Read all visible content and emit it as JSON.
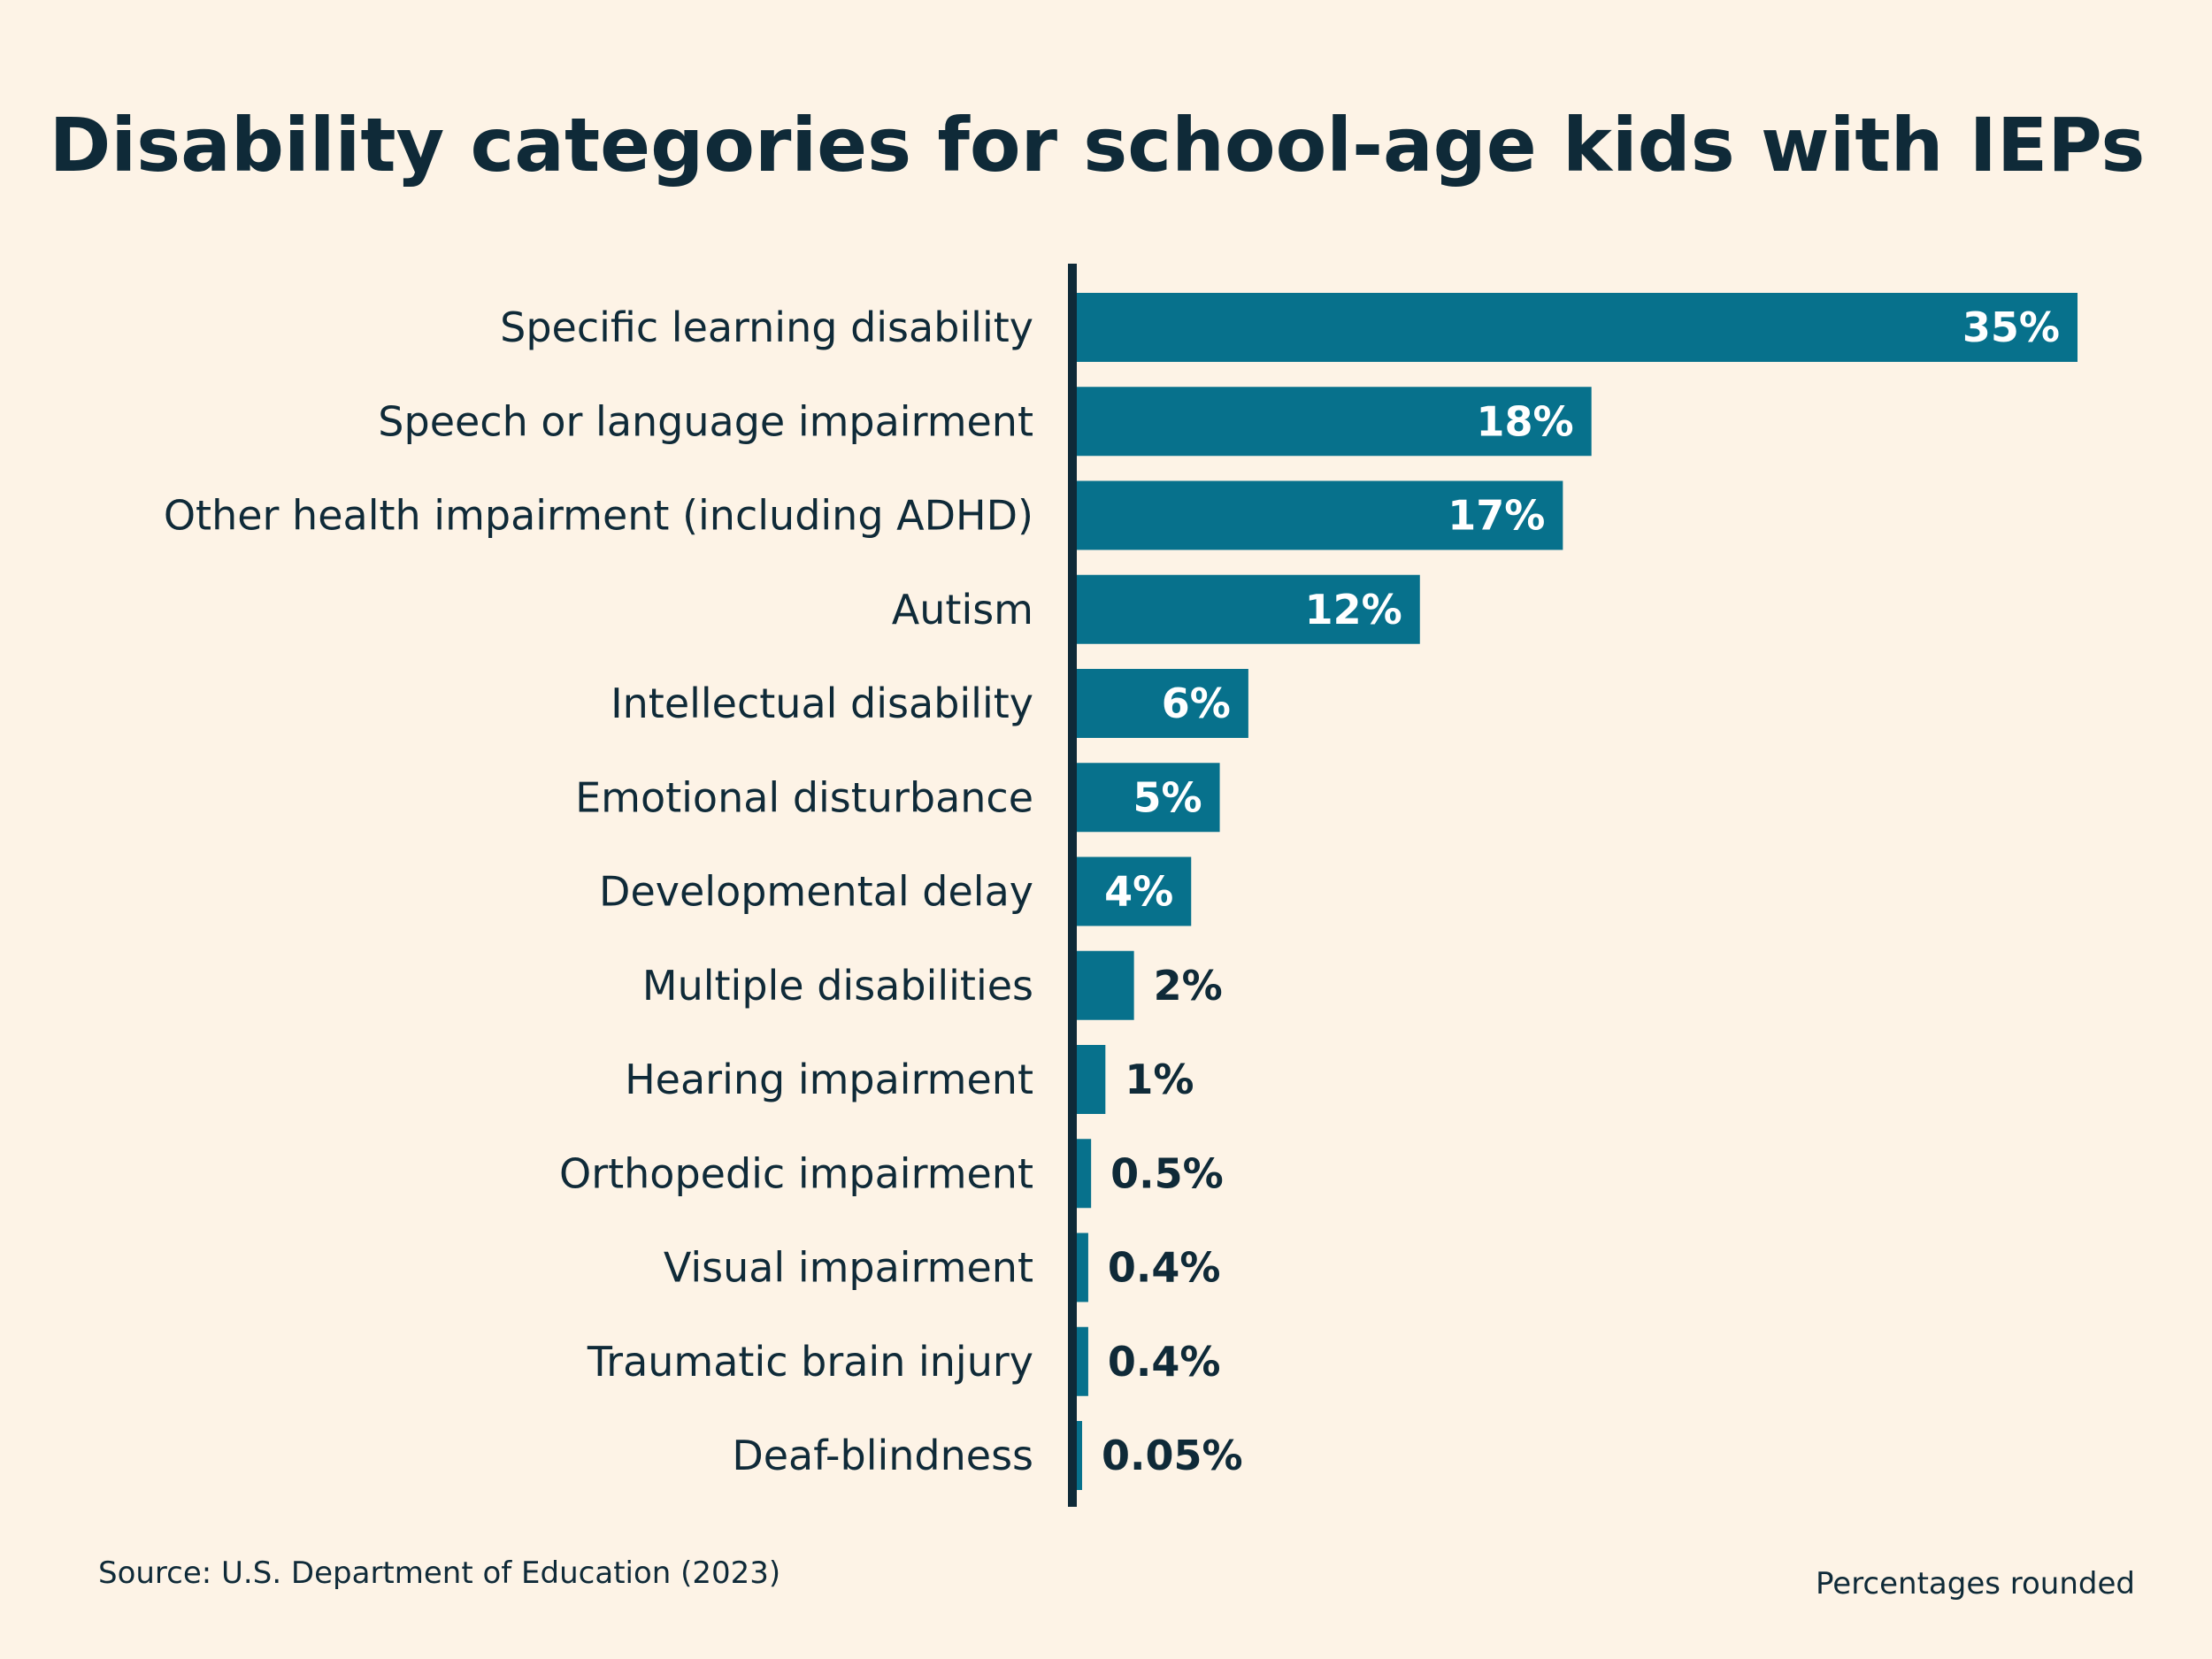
{
  "chart_data": {
    "type": "bar",
    "orientation": "horizontal",
    "title": "Disability categories for school-age kids with IEPs",
    "categories": [
      "Specific learning disability",
      "Speech or language impairment",
      "Other health impairment (including ADHD)",
      "Autism",
      "Intellectual disability",
      "Emotional disturbance",
      "Developmental delay",
      "Multiple disabilities",
      "Hearing impairment",
      "Orthopedic impairment",
      "Visual impairment",
      "Traumatic brain injury",
      "Deaf-blindness"
    ],
    "values": [
      35,
      18,
      17,
      12,
      6,
      5,
      4,
      2,
      1,
      0.5,
      0.4,
      0.4,
      0.05
    ],
    "value_labels": [
      "35%",
      "18%",
      "17%",
      "12%",
      "6%",
      "5%",
      "4%",
      "2%",
      "1%",
      "0.5%",
      "0.4%",
      "0.4%",
      "0.05%"
    ],
    "unit": "%",
    "xlim": [
      0,
      35
    ],
    "grid": false,
    "legend": "none",
    "source": "Source: U.S. Department of Education (2023)",
    "note": "Percentages rounded"
  },
  "colors": {
    "background": "#fdf3e6",
    "bar": "#07718c",
    "axis": "#0f2a38",
    "text": "#0f2a38",
    "label_inside": "#ffffff"
  }
}
